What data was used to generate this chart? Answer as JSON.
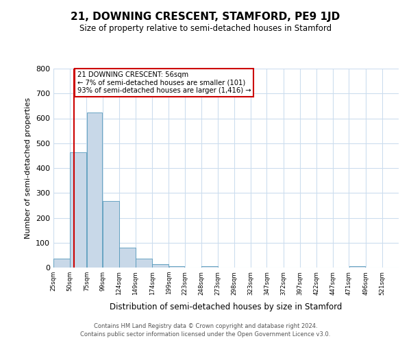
{
  "title": "21, DOWNING CRESCENT, STAMFORD, PE9 1JD",
  "subtitle": "Size of property relative to semi-detached houses in Stamford",
  "xlabel": "Distribution of semi-detached houses by size in Stamford",
  "ylabel": "Number of semi-detached properties",
  "bar_values": [
    37,
    464,
    623,
    268,
    80,
    35,
    13,
    5,
    0,
    5,
    0,
    0,
    0,
    0,
    0,
    0,
    0,
    0,
    5,
    0,
    0
  ],
  "bin_labels": [
    "25sqm",
    "50sqm",
    "75sqm",
    "99sqm",
    "124sqm",
    "149sqm",
    "174sqm",
    "199sqm",
    "223sqm",
    "248sqm",
    "273sqm",
    "298sqm",
    "323sqm",
    "347sqm",
    "372sqm",
    "397sqm",
    "422sqm",
    "447sqm",
    "471sqm",
    "496sqm",
    "521sqm"
  ],
  "bin_edges": [
    25,
    50,
    75,
    99,
    124,
    149,
    174,
    199,
    223,
    248,
    273,
    298,
    323,
    347,
    372,
    397,
    422,
    447,
    471,
    496,
    521,
    546
  ],
  "bar_color": "#c8d8e8",
  "bar_edge_color": "#5599bb",
  "property_line_x": 56,
  "annotation_title": "21 DOWNING CRESCENT: 56sqm",
  "annotation_line1": "← 7% of semi-detached houses are smaller (101)",
  "annotation_line2": "93% of semi-detached houses are larger (1,416) →",
  "annotation_box_color": "#ffffff",
  "annotation_box_edge_color": "#cc0000",
  "line_color": "#cc0000",
  "ylim": [
    0,
    800
  ],
  "yticks": [
    0,
    100,
    200,
    300,
    400,
    500,
    600,
    700,
    800
  ],
  "footer1": "Contains HM Land Registry data © Crown copyright and database right 2024.",
  "footer2": "Contains public sector information licensed under the Open Government Licence v3.0.",
  "bg_color": "#ffffff",
  "grid_color": "#ccddee"
}
